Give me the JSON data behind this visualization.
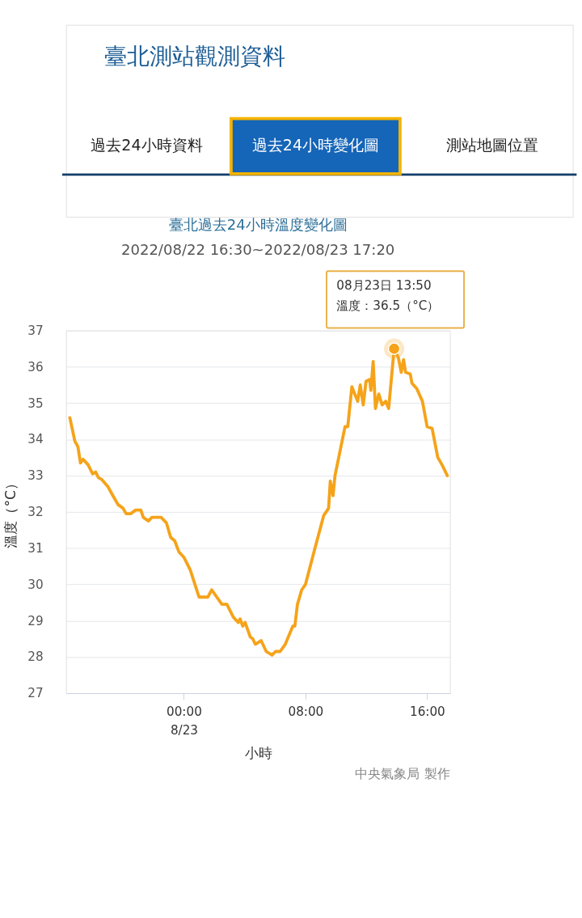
{
  "chart_data": {
    "type": "line",
    "title": "臺北過去24小時溫度變化圖",
    "subtitle": "2022/08/22 16:30~2022/08/23 17:20",
    "xlabel": "小時",
    "ylabel": "溫度（°C）",
    "xlim": [
      -7.75,
      17.5
    ],
    "xticks": [
      {
        "value": 0,
        "label": "00:00\n8/23"
      },
      {
        "value": 8,
        "label": "08:00"
      },
      {
        "value": 16,
        "label": "16:00"
      }
    ],
    "ylim": [
      27,
      37
    ],
    "yticks": [
      27,
      28,
      29,
      30,
      31,
      32,
      33,
      34,
      35,
      36,
      37
    ],
    "grid": "y",
    "series": [
      {
        "color": "#f5a31a",
        "x": [
          -7.5,
          -7.17,
          -6.97,
          -6.8,
          -6.63,
          -6.3,
          -6.0,
          -5.8,
          -5.63,
          -5.42,
          -5.0,
          -4.67,
          -4.33,
          -4.0,
          -3.8,
          -3.5,
          -3.17,
          -2.83,
          -2.67,
          -2.33,
          -2.1,
          -1.5,
          -1.15,
          -0.87,
          -0.6,
          -0.33,
          0.0,
          0.42,
          1.0,
          1.58,
          1.83,
          2.5,
          2.83,
          3.25,
          3.58,
          3.7,
          3.87,
          4.03,
          4.37,
          4.53,
          4.7,
          5.08,
          5.42,
          5.8,
          6.03,
          6.33,
          6.67,
          6.92,
          7.17,
          7.3,
          7.47,
          7.75,
          8.0,
          8.56,
          9.2,
          9.52,
          9.63,
          9.81,
          9.94,
          10.6,
          10.78,
          11.05,
          11.43,
          11.6,
          11.8,
          11.98,
          12.22,
          12.3,
          12.45,
          12.6,
          12.82,
          13.04,
          13.28,
          13.47,
          13.83,
          14.11,
          14.3,
          14.45,
          14.58,
          14.89,
          15.0,
          15.32,
          15.69,
          16.0,
          16.33,
          16.7,
          16.98,
          17.27,
          17.33
        ],
        "values": [
          34.6,
          33.95,
          33.8,
          33.35,
          33.45,
          33.3,
          33.05,
          33.1,
          32.95,
          32.9,
          32.7,
          32.45,
          32.2,
          32.1,
          31.95,
          31.95,
          32.05,
          32.05,
          31.85,
          31.75,
          31.85,
          31.85,
          31.7,
          31.3,
          31.2,
          30.9,
          30.75,
          30.4,
          29.65,
          29.65,
          29.85,
          29.45,
          29.45,
          29.1,
          28.95,
          29.05,
          28.85,
          28.95,
          28.55,
          28.5,
          28.35,
          28.45,
          28.15,
          28.05,
          28.15,
          28.15,
          28.35,
          28.6,
          28.85,
          28.85,
          29.45,
          29.85,
          30.0,
          30.9,
          31.9,
          32.1,
          32.85,
          32.45,
          33.0,
          34.35,
          34.35,
          35.45,
          35.05,
          35.5,
          34.95,
          35.6,
          35.65,
          35.35,
          36.15,
          34.85,
          35.25,
          34.95,
          35.05,
          34.85,
          36.5,
          36.25,
          35.85,
          36.2,
          35.85,
          35.8,
          35.55,
          35.4,
          35.05,
          34.35,
          34.3,
          33.5,
          33.3,
          33.05,
          33.0
        ]
      }
    ],
    "annotations": [
      {
        "text": "08月23日 13:50\n溫度：36.5（°C）",
        "x": 13.83,
        "y": 36.5
      },
      "臺北測站觀測資料",
      "過去24小時資料",
      "過去24小時變化圖",
      "測站地圖位置",
      "中央氣象局 製作"
    ]
  }
}
